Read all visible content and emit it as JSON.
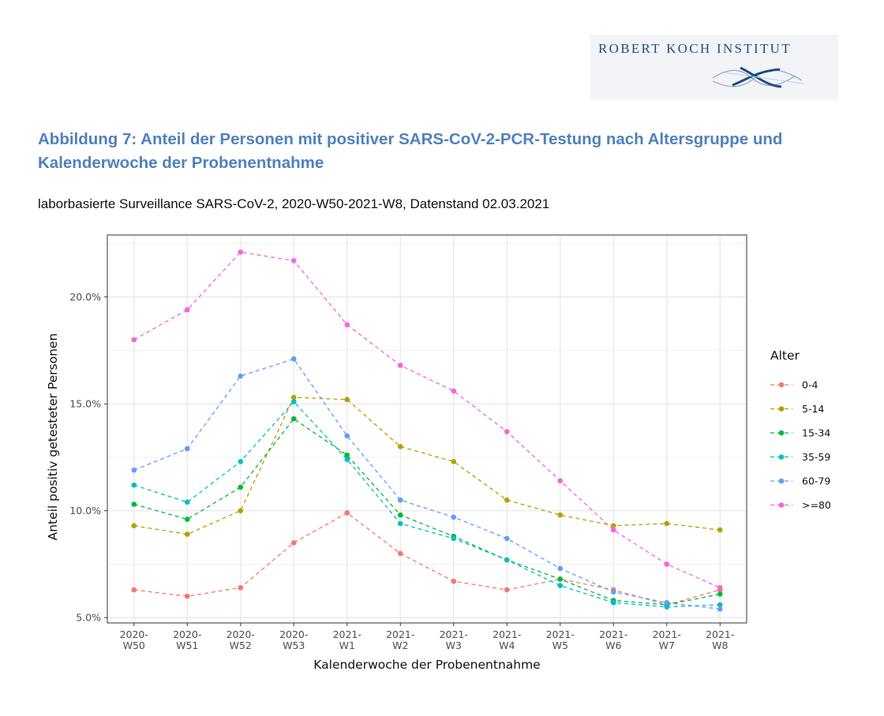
{
  "logo": {
    "text": "ROBERT KOCH INSTITUT"
  },
  "title": "Abbildung 7: Anteil der Personen mit positiver SARS-CoV-2-PCR-Testung nach Altersgruppe und Kalenderwoche der Probenentnahme",
  "subtitle": "laborbasierte Surveillance SARS-CoV-2, 2020-W50-2021-W8, Datenstand 02.03.2021",
  "chart_data": {
    "type": "line",
    "title": "",
    "xlabel": "Kalenderwoche der Probenentnahme",
    "ylabel": "Anteil positiv getesteter Personen",
    "categories": [
      [
        "2020-",
        "W50"
      ],
      [
        "2020-",
        "W51"
      ],
      [
        "2020-",
        "W52"
      ],
      [
        "2020-",
        "W53"
      ],
      [
        "2021-",
        "W1"
      ],
      [
        "2021-",
        "W2"
      ],
      [
        "2021-",
        "W3"
      ],
      [
        "2021-",
        "W4"
      ],
      [
        "2021-",
        "W5"
      ],
      [
        "2021-",
        "W6"
      ],
      [
        "2021-",
        "W7"
      ],
      [
        "2021-",
        "W8"
      ]
    ],
    "ylim": [
      4.75,
      22.9
    ],
    "yticks": [
      5,
      10,
      15,
      20
    ],
    "ytick_labels": [
      "5.0%",
      "10.0%",
      "15.0%",
      "20.0%"
    ],
    "grid": true,
    "legend": {
      "title": "Alter",
      "position": "right"
    },
    "series": [
      {
        "name": "0-4",
        "color": "#f8766d",
        "values": [
          6.3,
          6.0,
          6.4,
          8.5,
          9.9,
          8.0,
          6.7,
          6.3,
          6.8,
          6.3,
          5.6,
          6.3
        ]
      },
      {
        "name": "5-14",
        "color": "#b79f00",
        "values": [
          9.3,
          8.9,
          10.0,
          15.3,
          15.2,
          13.0,
          12.3,
          10.5,
          9.8,
          9.3,
          9.4,
          9.1
        ]
      },
      {
        "name": "15-34",
        "color": "#00ba38",
        "values": [
          10.3,
          9.6,
          11.1,
          14.3,
          12.6,
          9.8,
          8.8,
          7.7,
          6.8,
          5.8,
          5.6,
          6.1
        ]
      },
      {
        "name": "35-59",
        "color": "#00bfc4",
        "values": [
          11.2,
          10.4,
          12.3,
          15.1,
          12.4,
          9.4,
          8.7,
          7.7,
          6.5,
          5.7,
          5.5,
          5.6
        ]
      },
      {
        "name": "60-79",
        "color": "#619cff",
        "values": [
          11.9,
          12.9,
          16.3,
          17.1,
          13.5,
          10.5,
          9.7,
          8.7,
          7.3,
          6.2,
          5.7,
          5.4
        ]
      },
      {
        "name": ">=80",
        "color": "#f564e3",
        "values": [
          18.0,
          19.4,
          22.1,
          21.7,
          18.7,
          16.8,
          15.6,
          13.7,
          11.4,
          9.1,
          7.5,
          6.4
        ]
      }
    ]
  }
}
